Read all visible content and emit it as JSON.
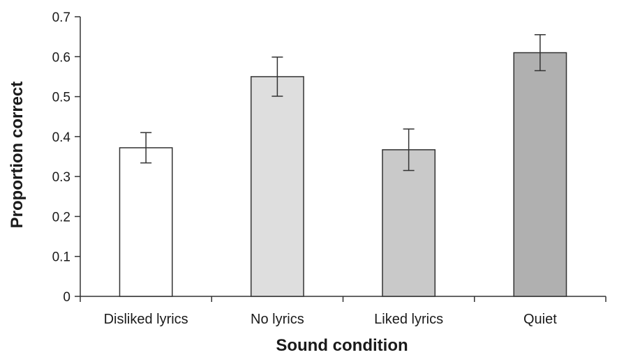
{
  "chart_data": {
    "type": "bar",
    "title": "",
    "xlabel": "Sound condition",
    "ylabel": "Proportion correct",
    "categories": [
      "Disliked lyrics",
      "No lyrics",
      "Liked lyrics",
      "Quiet"
    ],
    "values": [
      0.372,
      0.55,
      0.367,
      0.61
    ],
    "error": [
      0.038,
      0.049,
      0.052,
      0.045
    ],
    "colors": [
      "#ffffff",
      "#dedede",
      "#c9c9c9",
      "#b0b0b0"
    ],
    "ylim": [
      0,
      0.7
    ],
    "yticks": [
      "0",
      "0.1",
      "0.2",
      "0.3",
      "0.4",
      "0.5",
      "0.6",
      "0.7"
    ],
    "ytick_values": [
      0,
      0.1,
      0.2,
      0.3,
      0.4,
      0.5,
      0.6,
      0.7
    ],
    "grid": false,
    "legend": "none"
  }
}
